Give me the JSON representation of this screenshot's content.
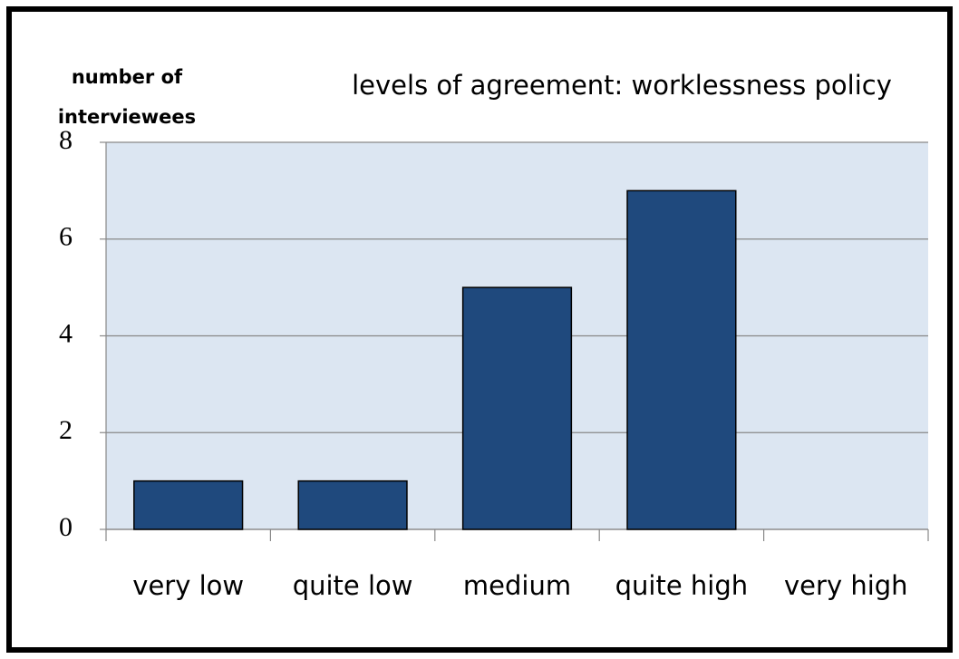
{
  "chart_data": {
    "type": "bar",
    "title": "levels of agreement: worklessness policy",
    "ylabel_lines": [
      "number of",
      "interviewees"
    ],
    "categories": [
      "very low",
      "quite low",
      "medium",
      "quite high",
      "very high"
    ],
    "values": [
      1,
      1,
      5,
      7,
      0
    ],
    "color": "#1f497d",
    "ylim": [
      0,
      8
    ],
    "yticks": [
      0,
      2,
      4,
      6,
      8
    ],
    "grid": true
  }
}
